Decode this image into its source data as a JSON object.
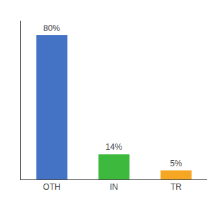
{
  "chart_data": {
    "type": "bar",
    "categories": [
      "OTH",
      "IN",
      "TR"
    ],
    "values": [
      80,
      14,
      5
    ],
    "value_labels": [
      "80%",
      "14%",
      "5%"
    ],
    "colors": [
      "#4472c4",
      "#3dba3d",
      "#f5a623"
    ],
    "ylim": [
      0,
      88
    ],
    "data_labels": true,
    "tick_labels": "x",
    "grid": false
  }
}
